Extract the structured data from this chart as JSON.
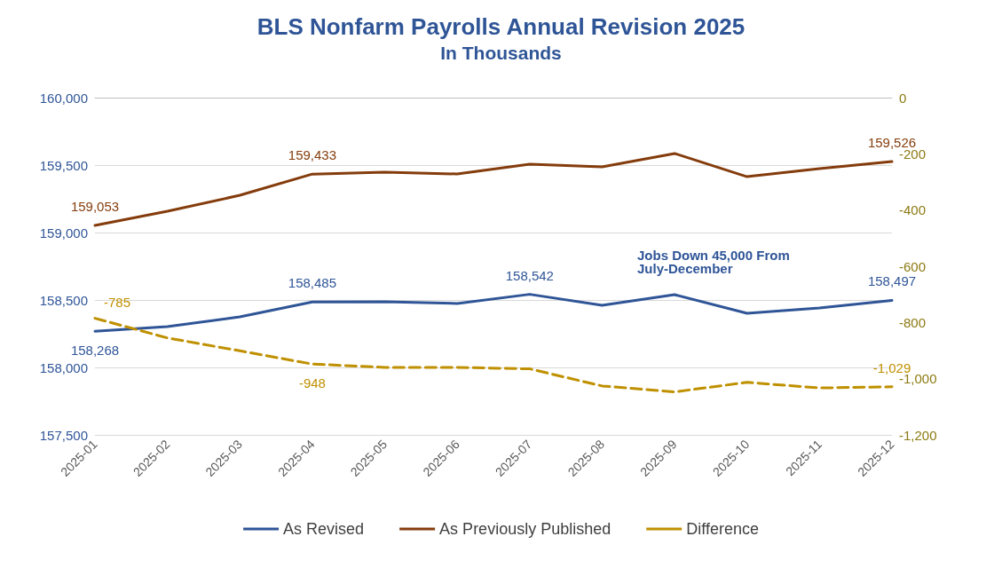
{
  "chart_data": {
    "type": "line",
    "title": "BLS Nonfarm Payrolls Annual Revision 2025",
    "subtitle": "In Thousands",
    "categories": [
      "2025-01",
      "2025-02",
      "2025-03",
      "2025-04",
      "2025-05",
      "2025-06",
      "2025-07",
      "2025-08",
      "2025-09",
      "2025-10",
      "2025-11",
      "2025-12"
    ],
    "series": [
      {
        "name": "As Revised",
        "color": "#2f5597",
        "line_style": "solid",
        "values": [
          158268,
          158303,
          158375,
          158485,
          158487,
          158474,
          158542,
          158461,
          158539,
          158401,
          158441,
          158497
        ],
        "value_labels": [
          "158,268",
          null,
          null,
          "158,485",
          null,
          null,
          "158,542",
          null,
          null,
          null,
          null,
          "158,497"
        ]
      },
      {
        "name": "As Previously Published",
        "color": "#843c0c",
        "line_style": "solid",
        "values": [
          159053,
          159158,
          159276,
          159433,
          159447,
          159434,
          159507,
          159487,
          159586,
          159414,
          159474,
          159526
        ],
        "value_labels": [
          "159,053",
          null,
          null,
          "159,433",
          null,
          null,
          null,
          null,
          null,
          null,
          null,
          "159,526"
        ]
      },
      {
        "name": "Difference",
        "color": "#bf9000",
        "line_style": "dashed",
        "axis": "y2",
        "values": [
          -785,
          -855,
          -901,
          -948,
          -960,
          -960,
          -965,
          -1026,
          -1047,
          -1013,
          -1033,
          -1029
        ],
        "value_labels": [
          "-785",
          null,
          null,
          "-948",
          null,
          null,
          null,
          null,
          null,
          null,
          null,
          "-1,029"
        ]
      }
    ],
    "ylim": [
      157500,
      160000
    ],
    "yticks": [
      {
        "value": 157500,
        "label": "157,500"
      },
      {
        "value": 158000,
        "label": "158,000"
      },
      {
        "value": 158500,
        "label": "158,500"
      },
      {
        "value": 159000,
        "label": "159,000"
      },
      {
        "value": 159500,
        "label": "159,500"
      },
      {
        "value": 160000,
        "label": "160,000"
      }
    ],
    "y2lim": [
      -1200,
      0
    ],
    "y2ticks": [
      {
        "value": -1200,
        "label": "-1,200"
      },
      {
        "value": -1000,
        "label": "-1,000"
      },
      -800,
      -600,
      -400,
      -200,
      0
    ],
    "annotations": [
      "Jobs Down 45,000 From July-December"
    ],
    "grid": "y",
    "legend": "bottom",
    "marker": "none"
  }
}
